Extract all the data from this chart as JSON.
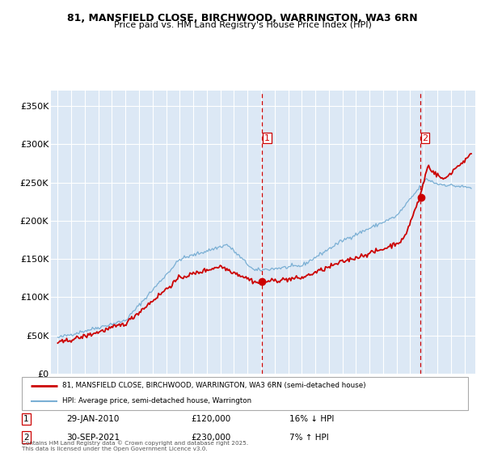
{
  "title_line1": "81, MANSFIELD CLOSE, BIRCHWOOD, WARRINGTON, WA3 6RN",
  "title_line2": "Price paid vs. HM Land Registry's House Price Index (HPI)",
  "background_color": "#ffffff",
  "plot_bg_color": "#dce8f5",
  "grid_color": "#ffffff",
  "sale1_date_label": "29-JAN-2010",
  "sale1_price": 120000,
  "sale1_hpi_label": "16% ↓ HPI",
  "sale2_date_label": "30-SEP-2021",
  "sale2_price": 230000,
  "sale2_hpi_label": "7% ↑ HPI",
  "sale1_x": 2010.08,
  "sale2_x": 2021.75,
  "sale1_y": 120000,
  "sale2_y": 230000,
  "legend_label_red": "81, MANSFIELD CLOSE, BIRCHWOOD, WARRINGTON, WA3 6RN (semi-detached house)",
  "legend_label_blue": "HPI: Average price, semi-detached house, Warrington",
  "footer": "Contains HM Land Registry data © Crown copyright and database right 2025.\nThis data is licensed under the Open Government Licence v3.0.",
  "red_color": "#cc0000",
  "blue_color": "#7aafd4",
  "ylim": [
    0,
    370000
  ],
  "xlim_start": 1994.5,
  "xlim_end": 2025.8,
  "yticks": [
    0,
    50000,
    100000,
    150000,
    200000,
    250000,
    300000,
    350000
  ],
  "ytick_labels": [
    "£0",
    "£50K",
    "£100K",
    "£150K",
    "£200K",
    "£250K",
    "£300K",
    "£350K"
  ],
  "xticks": [
    1995,
    1996,
    1997,
    1998,
    1999,
    2000,
    2001,
    2002,
    2003,
    2004,
    2005,
    2006,
    2007,
    2008,
    2009,
    2010,
    2011,
    2012,
    2013,
    2014,
    2015,
    2016,
    2017,
    2018,
    2019,
    2020,
    2021,
    2022,
    2023,
    2024,
    2025
  ]
}
